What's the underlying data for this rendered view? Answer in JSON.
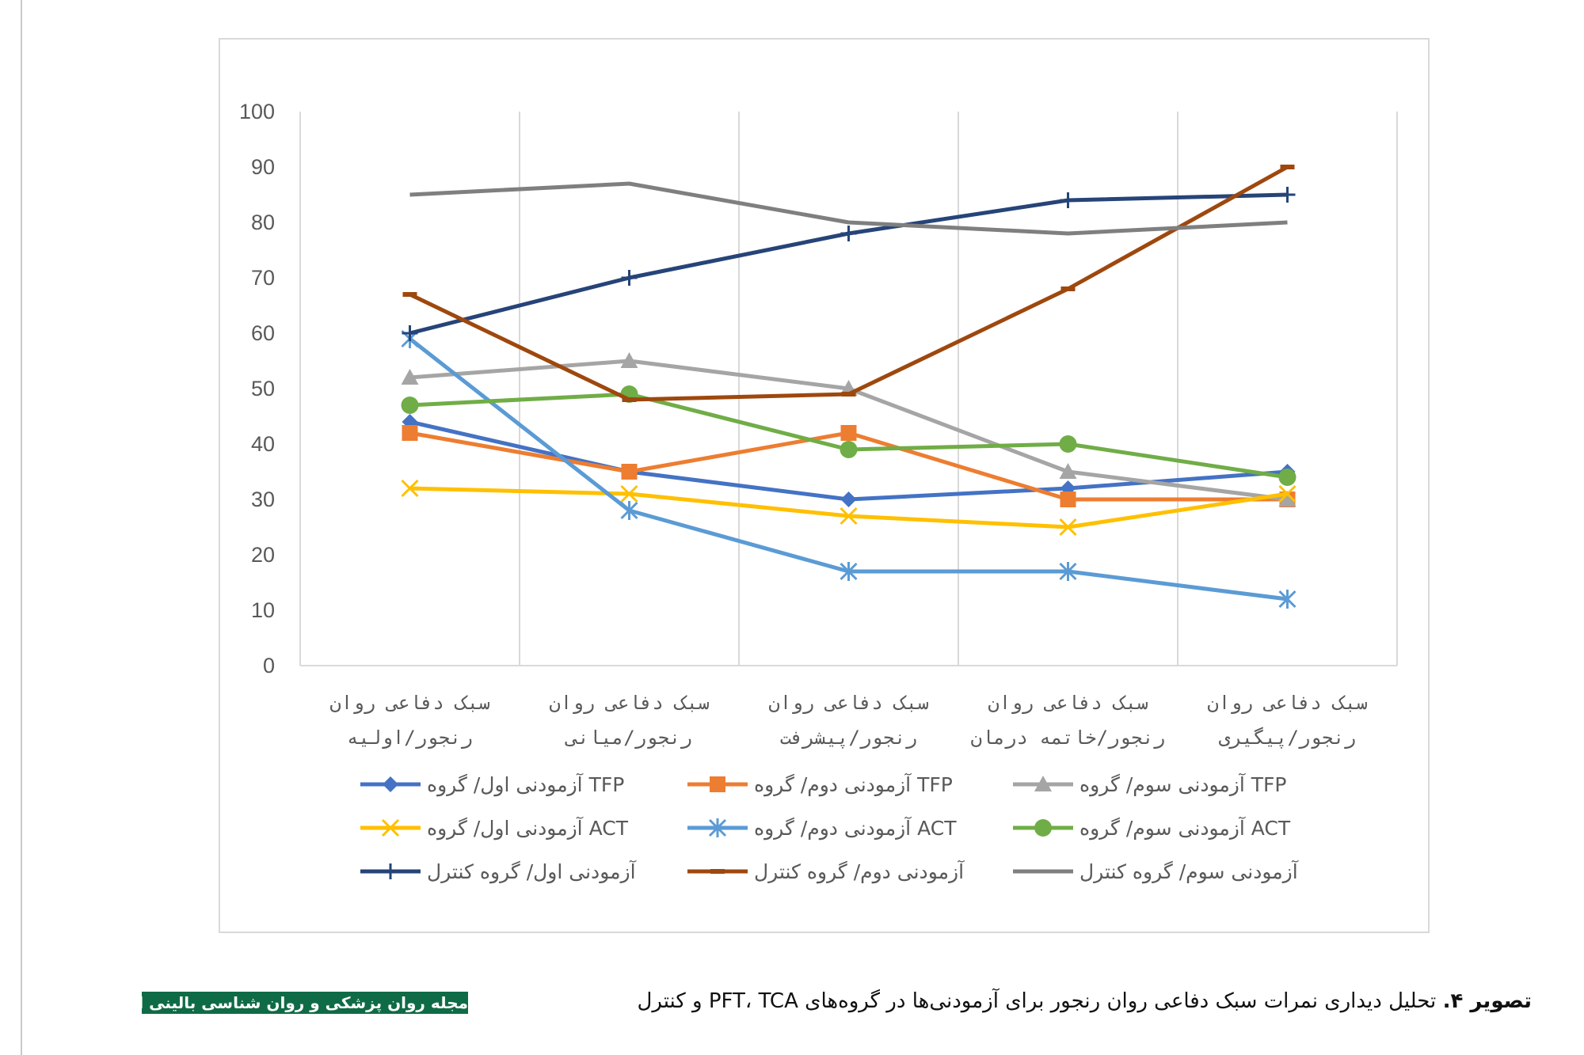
{
  "chart_data": {
    "type": "line",
    "title": "",
    "xlabel": "",
    "ylabel": "",
    "ylim": [
      0,
      100
    ],
    "yticks": [
      0,
      10,
      20,
      30,
      40,
      50,
      60,
      70,
      80,
      90,
      100
    ],
    "grid": "vertical",
    "legend_position": "bottom",
    "categories": [
      [
        "سبک دفاعی روان",
        "رنجور/اولیه"
      ],
      [
        "سبک دفاعی روان",
        "رنجور/میانی"
      ],
      [
        "سبک دفاعی روان",
        "رنجور/پیشرفت"
      ],
      [
        "سبک دفاعی روان",
        "رنجور/خاتمه درمان"
      ],
      [
        "سبک دفاعی روان",
        "رنجور/پیگیری"
      ]
    ],
    "series": [
      {
        "name": "آزمودنی اول/ گروه TFP",
        "color": "#4472c4",
        "marker": "diamond",
        "values": [
          44,
          35,
          30,
          32,
          35
        ]
      },
      {
        "name": "آزمودنی دوم/ گروه TFP",
        "color": "#ed7d31",
        "marker": "square",
        "values": [
          42,
          35,
          42,
          30,
          30
        ]
      },
      {
        "name": "آزمودنی سوم/ گروه TFP",
        "color": "#a5a5a5",
        "marker": "triangle",
        "values": [
          52,
          55,
          50,
          35,
          30
        ]
      },
      {
        "name": "آزمودنی اول/ گروه ACT",
        "color": "#ffc000",
        "marker": "x",
        "values": [
          32,
          31,
          27,
          25,
          31
        ]
      },
      {
        "name": "آزمودنی دوم/ گروه ACT",
        "color": "#5b9bd5",
        "marker": "star",
        "values": [
          59,
          28,
          17,
          17,
          12
        ]
      },
      {
        "name": "آزمودنی سوم/ گروه ACT",
        "color": "#70ad47",
        "marker": "circle",
        "values": [
          47,
          49,
          39,
          40,
          34
        ]
      },
      {
        "name": "آزمودنی اول/ گروه کنترل",
        "color": "#264478",
        "marker": "plus",
        "values": [
          60,
          70,
          78,
          84,
          85
        ]
      },
      {
        "name": "آزمودنی دوم/ گروه کنترل",
        "color": "#9e480e",
        "marker": "dash",
        "values": [
          67,
          48,
          49,
          68,
          90
        ]
      },
      {
        "name": "آزمودنی سوم/ گروه کنترل",
        "color": "#7f7f7f",
        "marker": "none",
        "values": [
          85,
          87,
          80,
          78,
          80
        ]
      }
    ]
  },
  "caption": {
    "label": "تصویر ۴.",
    "text": " تحلیل دیداری نمرات سبک دفاعی روان رنجور برای آزمودنی‌ها در گروه‌های PFT، TCA و کنترل"
  },
  "journal_logo": "مجله روان پزشکی و روان شناسی بالینی ایران"
}
